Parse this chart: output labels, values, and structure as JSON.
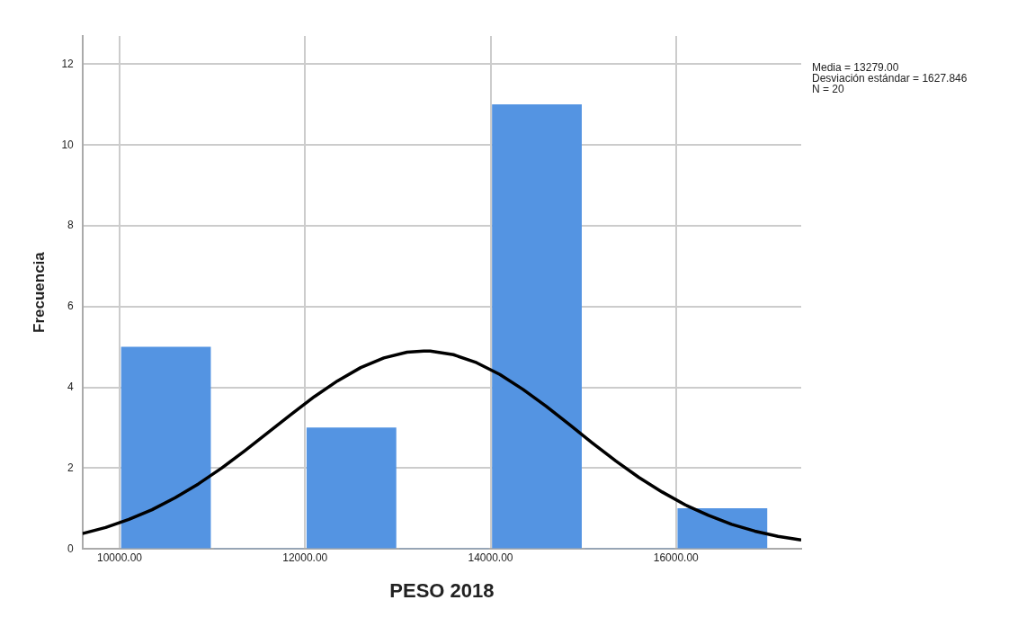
{
  "chart_data": {
    "type": "histogram",
    "xlabel": "PESO 2018",
    "ylabel": "Frecuencia",
    "bins": [
      10000,
      11000,
      12000,
      13000,
      14000,
      15000,
      16000,
      17000
    ],
    "values": [
      5,
      0,
      3,
      0,
      11,
      0,
      1
    ],
    "color": "#5494e2",
    "series": [
      {
        "type": "line",
        "color": "#000000",
        "x": [
          9600,
          9850,
          10100,
          10350,
          10600,
          10850,
          11100,
          11350,
          11600,
          11850,
          12100,
          12350,
          12600,
          12850,
          13100,
          13279,
          13350,
          13600,
          13850,
          14100,
          14350,
          14600,
          14850,
          15100,
          15350,
          15600,
          15850,
          16100,
          16350,
          16600,
          16850,
          17100,
          17350
        ],
        "values": [
          0.38,
          0.53,
          0.73,
          0.97,
          1.27,
          1.61,
          2.0,
          2.43,
          2.88,
          3.33,
          3.77,
          4.16,
          4.49,
          4.73,
          4.87,
          4.9,
          4.9,
          4.81,
          4.61,
          4.32,
          3.95,
          3.53,
          3.08,
          2.62,
          2.18,
          1.77,
          1.41,
          1.09,
          0.83,
          0.61,
          0.44,
          0.31,
          0.22
        ]
      }
    ],
    "xlim": [
      9600,
      17350
    ],
    "xticks": [
      {
        "value": 10000,
        "label": "10000.00"
      },
      {
        "value": 12000,
        "label": "12000.00"
      },
      {
        "value": 14000,
        "label": "14000.00"
      },
      {
        "value": 16000,
        "label": "16000.00"
      }
    ],
    "ylim": [
      0,
      12.7
    ],
    "yticks": [
      0,
      2,
      4,
      6,
      8,
      10,
      12
    ],
    "grid": true,
    "annotations": [
      "Media = 13279.00",
      "Desviación estándar = 1627.846",
      "N = 20"
    ]
  }
}
